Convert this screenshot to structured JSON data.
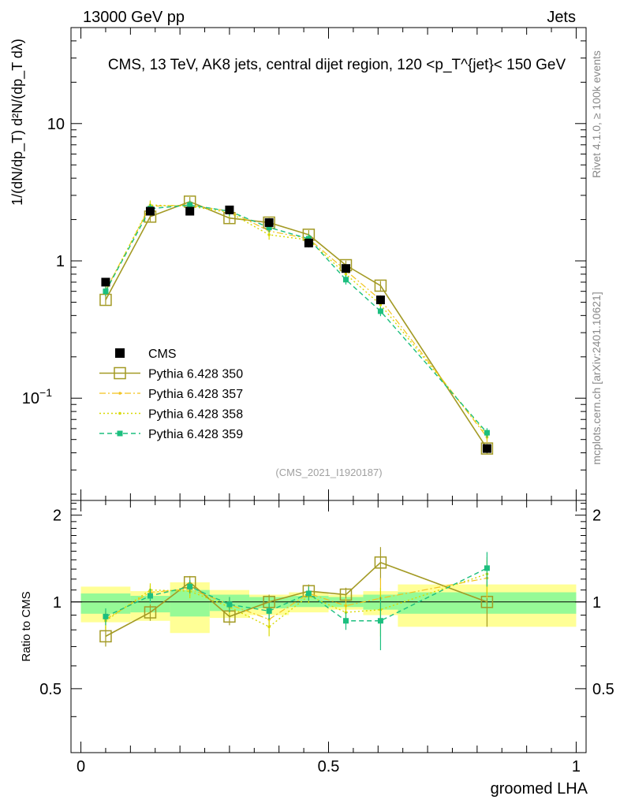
{
  "header": {
    "left": "13000 GeV pp",
    "right": "Jets"
  },
  "side_labels": {
    "rivet": "Rivet 4.1.0, ≥ 100k events",
    "mcplots": "mcplots.cern.ch [arXiv:2401.10621]"
  },
  "colors": {
    "cms": "#000000",
    "py350": "#a39a24",
    "py357": "#f2c21c",
    "py358": "#d8d800",
    "py359": "#1cbf7f",
    "band_yellow": "#ffff96",
    "band_green": "#96fa96"
  },
  "chart_data": [
    {
      "type": "scatter",
      "panel": "main",
      "title": "CMS, 13 TeV, AK8 jets, central dijet region, 120 <p_T^{jet}< 150 GeV",
      "xlabel": "groomed LHA",
      "ylabel": "1/(dN/dp_T) d²N/(dp_T dλ)",
      "yscale": "log",
      "xlim": [
        -0.02,
        1.02
      ],
      "ylim": [
        0.018,
        50
      ],
      "yticks": [
        {
          "v": 0.1,
          "base": "10",
          "exp": "−1"
        },
        {
          "v": 1,
          "base": "1",
          "exp": ""
        },
        {
          "v": 10,
          "base": "10",
          "exp": ""
        }
      ],
      "watermark": "(CMS_2021_I1920187)",
      "x": [
        0.05,
        0.14,
        0.22,
        0.3,
        0.38,
        0.46,
        0.535,
        0.605,
        0.82
      ],
      "bin_edges": [
        0.0,
        0.1,
        0.18,
        0.26,
        0.34,
        0.42,
        0.5,
        0.57,
        0.64,
        1.0
      ],
      "series": [
        {
          "key": "cms",
          "name": "CMS",
          "values": [
            0.7,
            2.3,
            2.3,
            2.35,
            1.9,
            1.35,
            0.88,
            0.52,
            0.043
          ]
        },
        {
          "key": "py350",
          "name": "Pythia 6.428 350",
          "values": [
            0.52,
            2.1,
            2.7,
            2.05,
            1.9,
            1.55,
            0.93,
            0.66,
            0.043
          ]
        },
        {
          "key": "py357",
          "name": "Pythia 6.428 357",
          "values": [
            0.61,
            2.5,
            2.55,
            2.3,
            1.65,
            1.45,
            0.85,
            0.52,
            0.052
          ]
        },
        {
          "key": "py358",
          "name": "Pythia 6.428 358",
          "values": [
            0.6,
            2.55,
            2.5,
            2.25,
            1.55,
            1.42,
            0.8,
            0.48,
            0.054
          ]
        },
        {
          "key": "py359",
          "name": "Pythia 6.428 359",
          "values": [
            0.6,
            2.4,
            2.55,
            2.3,
            1.75,
            1.45,
            0.73,
            0.43,
            0.056
          ]
        }
      ]
    },
    {
      "type": "scatter",
      "panel": "ratio",
      "ylabel": "Ratio to CMS",
      "xlabel": "groomed LHA",
      "xlim": [
        -0.02,
        1.02
      ],
      "ylim": [
        0.3,
        2.25
      ],
      "yticks": [
        0.5,
        1,
        2
      ],
      "xticks": [
        {
          "v": 0,
          "label": "0"
        },
        {
          "v": 0.5,
          "label": "0.5"
        },
        {
          "v": 1,
          "label": "1"
        }
      ],
      "bands": {
        "yellow": [
          [
            0.85,
            1.13
          ],
          [
            0.86,
            1.09
          ],
          [
            0.78,
            1.17
          ],
          [
            0.88,
            1.1
          ],
          [
            0.9,
            1.06
          ],
          [
            0.92,
            1.08
          ],
          [
            0.94,
            1.06
          ],
          [
            0.9,
            1.09
          ],
          [
            0.82,
            1.15
          ]
        ],
        "green": [
          [
            0.91,
            1.07
          ],
          [
            0.92,
            1.05
          ],
          [
            0.89,
            1.1
          ],
          [
            0.93,
            1.06
          ],
          [
            0.95,
            1.04
          ],
          [
            0.96,
            1.05
          ],
          [
            0.96,
            1.04
          ],
          [
            0.94,
            1.06
          ],
          [
            0.91,
            1.08
          ]
        ]
      },
      "series": [
        {
          "key": "py350",
          "name": "Pythia 6.428 350",
          "values": [
            0.76,
            0.92,
            1.17,
            0.89,
            1.0,
            1.09,
            1.06,
            1.37,
            1.0
          ]
        },
        {
          "key": "py357",
          "name": "Pythia 6.428 357",
          "values": [
            0.87,
            1.08,
            1.11,
            0.98,
            0.87,
            1.07,
            0.97,
            1.03,
            1.21
          ]
        },
        {
          "key": "py358",
          "name": "Pythia 6.428 358",
          "values": [
            0.86,
            1.1,
            1.09,
            0.96,
            0.82,
            1.05,
            0.92,
            0.94,
            1.25
          ]
        },
        {
          "key": "py359",
          "name": "Pythia 6.428 359",
          "values": [
            0.89,
            1.05,
            1.13,
            0.98,
            0.93,
            1.07,
            0.86,
            0.86,
            1.31
          ]
        }
      ]
    }
  ]
}
